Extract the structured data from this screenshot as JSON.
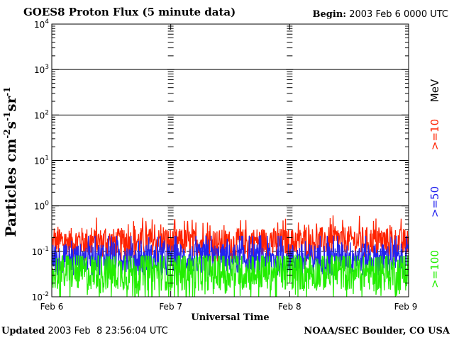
{
  "header": {
    "title": "GOES8 Proton Flux (5 minute data)",
    "begin_label": "Begin:",
    "begin_value": "2003 Feb 6 0000 UTC"
  },
  "footer": {
    "updated_label": "Updated",
    "updated_value": "2003 Feb  8 23:56:04 UTC",
    "org": "NOAA/SEC Boulder, CO USA"
  },
  "chart_data": {
    "type": "line",
    "title": "GOES8 Proton Flux (5 minute data)",
    "xlabel": "Universal Time",
    "ylabel": "Particles cm-2s-1sr-1",
    "y_scale": "log",
    "ylim": [
      0.01,
      10000
    ],
    "xlim_days": [
      0,
      3
    ],
    "x_ticks": [
      "Feb 6",
      "Feb 7",
      "Feb 8",
      "Feb 9"
    ],
    "y_ticks": [
      {
        "value": 0.01,
        "base": "10",
        "exp": "-2"
      },
      {
        "value": 0.1,
        "base": "10",
        "exp": "-1"
      },
      {
        "value": 1,
        "base": "10",
        "exp": "0"
      },
      {
        "value": 10,
        "base": "10",
        "exp": "1"
      },
      {
        "value": 100,
        "base": "10",
        "exp": "2"
      },
      {
        "value": 1000,
        "base": "10",
        "exp": "3"
      },
      {
        "value": 10000,
        "base": "10",
        "exp": "4"
      }
    ],
    "gridlines": [
      {
        "value": 1000,
        "style": "solid"
      },
      {
        "value": 100,
        "style": "solid"
      },
      {
        "value": 10,
        "style": "dashed"
      },
      {
        "value": 1,
        "style": "solid"
      },
      {
        "value": 0.1,
        "style": "dashed"
      }
    ],
    "legend_unit": "MeV",
    "legend_placement": "right",
    "series": [
      {
        "name": ">=10",
        "color": "#ff2200",
        "x": [
          0,
          0.25,
          0.5,
          0.75,
          1,
          1.25,
          1.5,
          1.75,
          2,
          2.25,
          2.5,
          2.75,
          3
        ],
        "y": [
          0.15,
          0.17,
          0.16,
          0.17,
          0.16,
          0.16,
          0.15,
          0.17,
          0.16,
          0.17,
          0.18,
          0.17,
          0.16
        ],
        "noise": "high",
        "range_note": "fluctuates approx 0.08-0.5"
      },
      {
        "name": ">=50",
        "color": "#2222ee",
        "x": [
          0,
          0.25,
          0.5,
          0.75,
          1,
          1.25,
          1.5,
          1.75,
          2,
          2.25,
          2.5,
          2.75,
          3
        ],
        "y": [
          0.07,
          0.07,
          0.08,
          0.07,
          0.07,
          0.07,
          0.07,
          0.07,
          0.07,
          0.07,
          0.08,
          0.07,
          0.07
        ],
        "noise": "high",
        "range_note": "fluctuates approx 0.03-0.2"
      },
      {
        "name": ">=100",
        "color": "#22ee00",
        "x": [
          0,
          0.25,
          0.5,
          0.75,
          1,
          1.25,
          1.5,
          1.75,
          2,
          2.25,
          2.5,
          2.75,
          3
        ],
        "y": [
          0.035,
          0.035,
          0.035,
          0.035,
          0.035,
          0.035,
          0.035,
          0.035,
          0.035,
          0.035,
          0.035,
          0.035,
          0.035
        ],
        "noise": "high",
        "range_note": "fluctuates approx 0.01-0.08"
      }
    ]
  }
}
